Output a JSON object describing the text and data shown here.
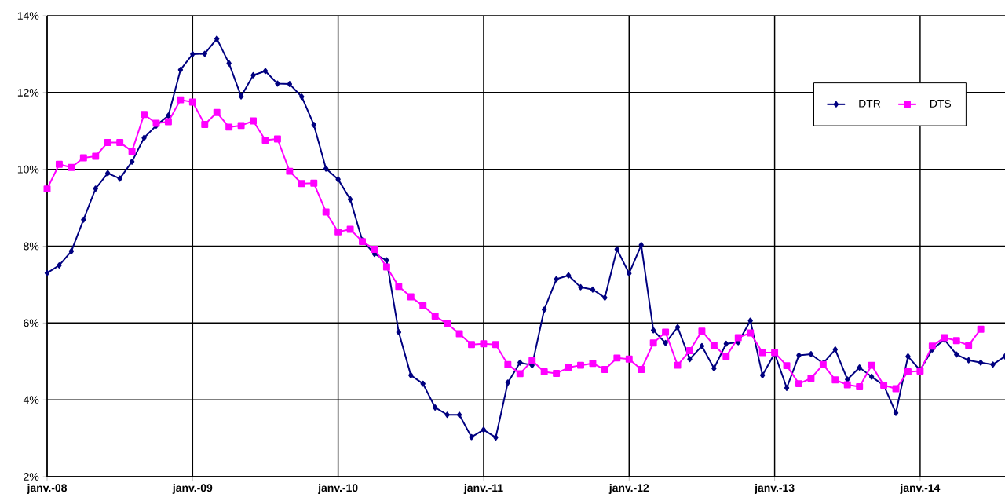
{
  "chart_data": {
    "type": "line",
    "x": [
      "2008-01",
      "2008-02",
      "2008-03",
      "2008-04",
      "2008-05",
      "2008-06",
      "2008-07",
      "2008-08",
      "2008-09",
      "2008-10",
      "2008-11",
      "2008-12",
      "2009-01",
      "2009-02",
      "2009-03",
      "2009-04",
      "2009-05",
      "2009-06",
      "2009-07",
      "2009-08",
      "2009-09",
      "2009-10",
      "2009-11",
      "2009-12",
      "2010-01",
      "2010-02",
      "2010-03",
      "2010-04",
      "2010-05",
      "2010-06",
      "2010-07",
      "2010-08",
      "2010-09",
      "2010-10",
      "2010-11",
      "2010-12",
      "2011-01",
      "2011-02",
      "2011-03",
      "2011-04",
      "2011-05",
      "2011-06",
      "2011-07",
      "2011-08",
      "2011-09",
      "2011-10",
      "2011-11",
      "2011-12",
      "2012-01",
      "2012-02",
      "2012-03",
      "2012-04",
      "2012-05",
      "2012-06",
      "2012-07",
      "2012-08",
      "2012-09",
      "2012-10",
      "2012-11",
      "2012-12",
      "2013-01",
      "2013-02",
      "2013-03",
      "2013-04",
      "2013-05",
      "2013-06",
      "2013-07",
      "2013-08",
      "2013-09",
      "2013-10",
      "2013-11",
      "2013-12",
      "2014-01",
      "2014-02",
      "2014-03",
      "2014-04",
      "2014-05",
      "2014-06",
      "2014-07",
      "2014-08"
    ],
    "series": [
      {
        "name": "DTR",
        "color": "#000080",
        "marker": "diamond",
        "values": [
          7.3,
          7.5,
          7.87,
          8.69,
          9.5,
          9.9,
          9.76,
          10.2,
          10.82,
          11.14,
          11.4,
          12.59,
          13.0,
          13.01,
          13.4,
          12.76,
          11.9,
          12.45,
          12.56,
          12.23,
          12.22,
          11.89,
          11.16,
          10.02,
          9.74,
          9.22,
          8.15,
          7.8,
          7.63,
          5.76,
          4.64,
          4.42,
          3.8,
          3.61,
          3.61,
          3.03,
          3.22,
          3.02,
          4.45,
          4.97,
          4.9,
          6.35,
          7.14,
          7.24,
          6.93,
          6.87,
          6.66,
          7.92,
          7.29,
          8.03,
          5.81,
          5.48,
          5.89,
          5.06,
          5.4,
          4.82,
          5.46,
          5.5,
          6.06,
          4.64,
          5.21,
          4.31,
          5.16,
          5.19,
          4.95,
          5.31,
          4.53,
          4.84,
          4.6,
          4.38,
          3.66,
          5.13,
          4.77,
          5.31,
          5.57,
          5.18,
          5.03,
          4.97,
          4.92,
          5.13
        ]
      },
      {
        "name": "DTS",
        "color": "#ff00ff",
        "marker": "square",
        "values": [
          9.49,
          10.13,
          10.05,
          10.3,
          10.34,
          10.7,
          10.7,
          10.47,
          11.43,
          11.2,
          11.24,
          11.81,
          11.75,
          11.17,
          11.48,
          11.1,
          11.14,
          11.26,
          10.76,
          10.79,
          9.95,
          9.63,
          9.64,
          8.89,
          8.37,
          8.44,
          8.12,
          7.92,
          7.46,
          6.95,
          6.68,
          6.45,
          6.18,
          5.98,
          5.72,
          5.44,
          5.46,
          5.44,
          4.92,
          4.68,
          5.02,
          4.73,
          4.69,
          4.84,
          4.9,
          4.95,
          4.79,
          5.09,
          5.06,
          4.79,
          5.48,
          5.76,
          4.9,
          5.28,
          5.79,
          5.42,
          5.13,
          5.62,
          5.74,
          5.23,
          5.23,
          4.89,
          4.42,
          4.56,
          4.92,
          4.52,
          4.39,
          4.34,
          4.9,
          4.38,
          4.29,
          4.73,
          4.75,
          5.4,
          5.62,
          5.54,
          5.42,
          5.84,
          null,
          null
        ]
      }
    ],
    "xlim": [
      "2008-01",
      "2014-08"
    ],
    "xticks": [
      {
        "value": "2008-01",
        "label": "janv.-08"
      },
      {
        "value": "2009-01",
        "label": "janv.-09"
      },
      {
        "value": "2010-01",
        "label": "janv.-10"
      },
      {
        "value": "2011-01",
        "label": "janv.-11"
      },
      {
        "value": "2012-01",
        "label": "janv.-12"
      },
      {
        "value": "2013-01",
        "label": "janv.-13"
      },
      {
        "value": "2014-01",
        "label": "janv.-14"
      }
    ],
    "ylim": [
      2,
      14
    ],
    "yticks": [
      {
        "value": 2,
        "label": "2%"
      },
      {
        "value": 4,
        "label": "4%"
      },
      {
        "value": 6,
        "label": "6%"
      },
      {
        "value": 8,
        "label": "8%"
      },
      {
        "value": 10,
        "label": "10%"
      },
      {
        "value": 12,
        "label": "12%"
      },
      {
        "value": 14,
        "label": "14%"
      }
    ],
    "grid": true,
    "legend": "top right",
    "line_style": "solid"
  }
}
